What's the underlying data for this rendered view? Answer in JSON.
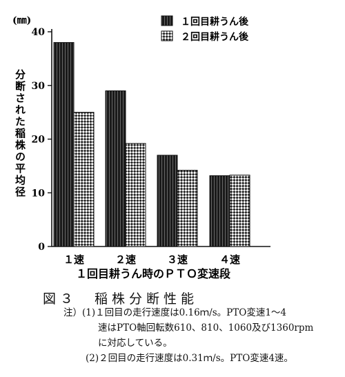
{
  "chart_data": {
    "type": "bar",
    "unit_label": "(㎜)",
    "ylabel": "分断された稲株の平均径",
    "xlabel": "１回目耕うん時のＰＴＯ変速段",
    "categories": [
      "１速",
      "２速",
      "３速",
      "４速"
    ],
    "ylim": [
      0,
      40
    ],
    "yticks": [
      0,
      10,
      20,
      30,
      40
    ],
    "grid": false,
    "legend_position": "top-right",
    "series": [
      {
        "name": "１回目耕うん後",
        "values": [
          38,
          29,
          17,
          13.2
        ],
        "pattern": "dark-stripes",
        "color": "#1a1a1a"
      },
      {
        "name": "２回目耕うん後",
        "values": [
          25,
          19.2,
          14.2,
          13.3
        ],
        "pattern": "checker",
        "color": "#ffffff"
      }
    ]
  },
  "figure": {
    "caption": "図３　稲株分断性能"
  },
  "notes": {
    "note1_line1": "注）(1)１回目の走行速度は0.16ｍ/s。PTO変速1～4",
    "note1_line2": "速はPTO軸回転数610、810、1060及び1360rpm",
    "note1_line3": "に対応している。",
    "note2": "(2)２回目の走行速度は0.31ｍ/s。PTO変速4速。"
  }
}
